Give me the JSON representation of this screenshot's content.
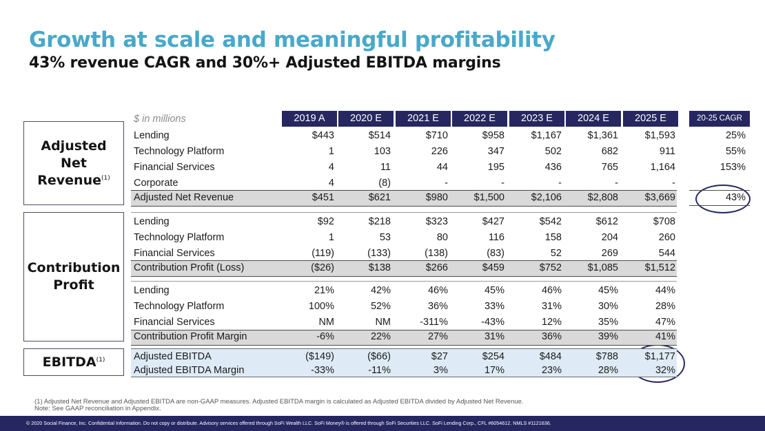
{
  "title": "Growth at scale and meaningful profitability",
  "subtitle": "43% revenue CAGR and 30%+ Adjusted EBITDA margins",
  "table": {
    "unit_label": "$ in millions",
    "columns": [
      "2019 A",
      "2020 E",
      "2021 E",
      "2022 E",
      "2023 E",
      "2024 E",
      "2025 E"
    ],
    "cagr_header": "20-25 CAGR",
    "sections": {
      "net_revenue": {
        "title_lines": [
          "Adjusted",
          "Net",
          "Revenue"
        ],
        "footnote_mark": "(1)",
        "rows": [
          {
            "label": "Lending",
            "values": [
              "$443",
              "$514",
              "$710",
              "$958",
              "$1,167",
              "$1,361",
              "$1,593"
            ],
            "cagr": "25%"
          },
          {
            "label": "Technology Platform",
            "values": [
              "1",
              "103",
              "226",
              "347",
              "502",
              "682",
              "911"
            ],
            "cagr": "55%"
          },
          {
            "label": "Financial Services",
            "values": [
              "4",
              "11",
              "44",
              "195",
              "436",
              "765",
              "1,164"
            ],
            "cagr": "153%"
          },
          {
            "label": "Corporate",
            "values": [
              "4",
              "(8)",
              "-",
              "-",
              "-",
              "-",
              "-"
            ],
            "cagr": ""
          }
        ],
        "total": {
          "label": "Adjusted Net Revenue",
          "values": [
            "$451",
            "$621",
            "$980",
            "$1,500",
            "$2,106",
            "$2,808",
            "$3,669"
          ],
          "cagr": "43%"
        }
      },
      "contribution": {
        "title_lines": [
          "Contribution",
          "Profit"
        ],
        "rows": [
          {
            "label": "Lending",
            "values": [
              "$92",
              "$218",
              "$323",
              "$427",
              "$542",
              "$612",
              "$708"
            ]
          },
          {
            "label": "Technology Platform",
            "values": [
              "1",
              "53",
              "80",
              "116",
              "158",
              "204",
              "260"
            ]
          },
          {
            "label": "Financial Services",
            "values": [
              "(119)",
              "(133)",
              "(138)",
              "(83)",
              "52",
              "269",
              "544"
            ]
          }
        ],
        "total": {
          "label": "Contribution Profit (Loss)",
          "values": [
            "($26)",
            "$138",
            "$266",
            "$459",
            "$752",
            "$1,085",
            "$1,512"
          ]
        },
        "margin_rows": [
          {
            "label": "Lending",
            "values": [
              "21%",
              "42%",
              "46%",
              "45%",
              "46%",
              "45%",
              "44%"
            ]
          },
          {
            "label": "Technology Platform",
            "values": [
              "100%",
              "52%",
              "36%",
              "33%",
              "31%",
              "30%",
              "28%"
            ]
          },
          {
            "label": "Financial Services",
            "values": [
              "NM",
              "NM",
              "-311%",
              "-43%",
              "12%",
              "35%",
              "47%"
            ]
          }
        ],
        "margin_total": {
          "label": "Contribution Profit Margin",
          "values": [
            "-6%",
            "22%",
            "27%",
            "31%",
            "36%",
            "39%",
            "41%"
          ]
        }
      },
      "ebitda": {
        "title": "EBITDA",
        "footnote_mark": "(1)",
        "rows": [
          {
            "label": "Adjusted EBITDA",
            "values": [
              "($149)",
              "($66)",
              "$27",
              "$254",
              "$484",
              "$788",
              "$1,177"
            ]
          },
          {
            "label": "Adjusted EBITDA Margin",
            "values": [
              "-33%",
              "-11%",
              "3%",
              "17%",
              "23%",
              "28%",
              "32%"
            ]
          }
        ]
      }
    }
  },
  "footnotes": {
    "line1": "(1) Adjusted Net Revenue and Adjusted EBITDA are non-GAAP measures.  Adjusted EBITDA margin is calculated as Adjusted EBITDA divided by Adjusted Net Revenue.",
    "line2": "Note: See GAAP reconciliation in Appendix."
  },
  "footer": "© 2020 Social Finance, Inc. Confidential Information. Do not copy or distribute. Advisory services offered through SoFi Wealth LLC. SoFi Money® is offered through SoFi Securities LLC. SoFi Lending Corp., CFL #6054612. NMLS #1121636.",
  "colors": {
    "title": "#4aa8c9",
    "navy": "#262660",
    "total_band": "#d9d9d9",
    "ebitda_band": "#deebf6"
  }
}
